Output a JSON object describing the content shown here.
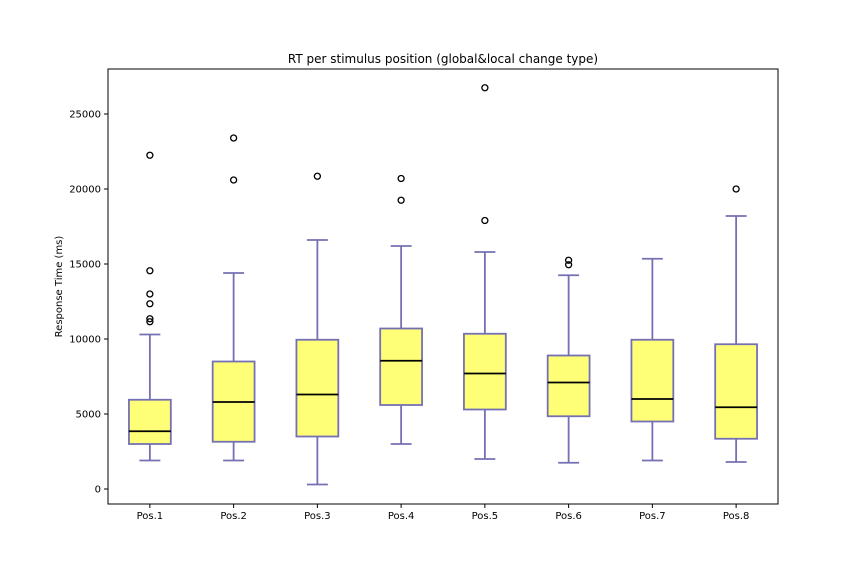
{
  "chart_data": {
    "type": "box",
    "title": "RT per stimulus position (global&local change type)",
    "xlabel": "",
    "ylabel": "Response Time (ms)",
    "ylim": [
      -1000,
      28000
    ],
    "yticks": [
      0,
      5000,
      10000,
      15000,
      20000,
      25000
    ],
    "grid": false,
    "colors": {
      "box_fill": "#ffff77",
      "box_edge": "#7570b3",
      "median": "#000000",
      "outlier_edge": "#000000"
    },
    "categories": [
      "Pos.1",
      "Pos.2",
      "Pos.3",
      "Pos.4",
      "Pos.5",
      "Pos.6",
      "Pos.7",
      "Pos.8"
    ],
    "boxes": [
      {
        "label": "Pos.1",
        "whisker_low": 1900,
        "q1": 3000,
        "median": 3850,
        "q3": 5950,
        "whisker_high": 10300,
        "outliers": [
          11150,
          11350,
          12350,
          13000,
          14550,
          22250
        ]
      },
      {
        "label": "Pos.2",
        "whisker_low": 1900,
        "q1": 3150,
        "median": 5800,
        "q3": 8500,
        "whisker_high": 14400,
        "outliers": [
          20600,
          23400
        ]
      },
      {
        "label": "Pos.3",
        "whisker_low": 300,
        "q1": 3500,
        "median": 6300,
        "q3": 9950,
        "whisker_high": 16600,
        "outliers": [
          20850
        ]
      },
      {
        "label": "Pos.4",
        "whisker_low": 3000,
        "q1": 5600,
        "median": 8550,
        "q3": 10700,
        "whisker_high": 16200,
        "outliers": [
          19250,
          20700
        ]
      },
      {
        "label": "Pos.5",
        "whisker_low": 2000,
        "q1": 5300,
        "median": 7700,
        "q3": 10350,
        "whisker_high": 15800,
        "outliers": [
          17900,
          26750
        ]
      },
      {
        "label": "Pos.6",
        "whisker_low": 1750,
        "q1": 4850,
        "median": 7100,
        "q3": 8900,
        "whisker_high": 14250,
        "outliers": [
          14950,
          15250
        ]
      },
      {
        "label": "Pos.7",
        "whisker_low": 1900,
        "q1": 4500,
        "median": 6000,
        "q3": 9950,
        "whisker_high": 15350,
        "outliers": []
      },
      {
        "label": "Pos.8",
        "whisker_low": 1800,
        "q1": 3350,
        "median": 5450,
        "q3": 9650,
        "whisker_high": 18200,
        "outliers": [
          20000
        ]
      }
    ]
  }
}
